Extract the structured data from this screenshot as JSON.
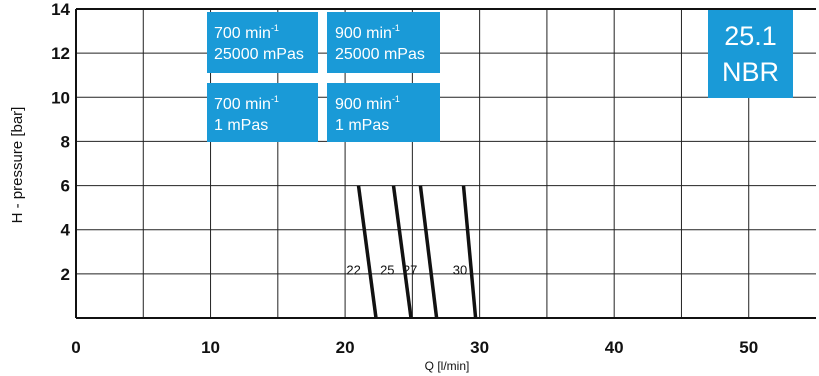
{
  "chart_data": {
    "type": "line",
    "xlabel": "Q [l/min]",
    "ylabel": "H - pressure [bar]",
    "xlim": [
      0,
      55
    ],
    "ylim": [
      0,
      14
    ],
    "x_ticks": [
      0,
      10,
      20,
      30,
      40,
      50
    ],
    "y_ticks": [
      2,
      4,
      6,
      8,
      10,
      12,
      14
    ],
    "grid": true,
    "series": [
      {
        "name": "22",
        "points": [
          [
            21.0,
            6.0
          ],
          [
            22.3,
            0.0
          ]
        ]
      },
      {
        "name": "25",
        "points": [
          [
            23.6,
            6.0
          ],
          [
            24.9,
            0.0
          ]
        ]
      },
      {
        "name": "27",
        "points": [
          [
            25.6,
            6.0
          ],
          [
            26.8,
            0.0
          ]
        ]
      },
      {
        "name": "30",
        "points": [
          [
            28.8,
            6.0
          ],
          [
            29.7,
            0.0
          ]
        ]
      }
    ],
    "label_y": 2.2,
    "label_x": [
      20.1,
      22.6,
      24.3,
      28.0
    ]
  },
  "legend_boxes": [
    {
      "speed": "700",
      "unit": "min",
      "exp": "-1",
      "viscosity": "25000 mPas"
    },
    {
      "speed": "900",
      "unit": "min",
      "exp": "-1",
      "viscosity": "25000 mPas"
    },
    {
      "speed": "700",
      "unit": "min",
      "exp": "-1",
      "viscosity": "1 mPas"
    },
    {
      "speed": "900",
      "unit": "min",
      "exp": "-1",
      "viscosity": "1 mPas"
    }
  ],
  "badge": {
    "line1": "25.1",
    "line2": "NBR"
  },
  "colors": {
    "accent": "#1a9ad7",
    "grid": "#222222",
    "curve": "#111111"
  }
}
